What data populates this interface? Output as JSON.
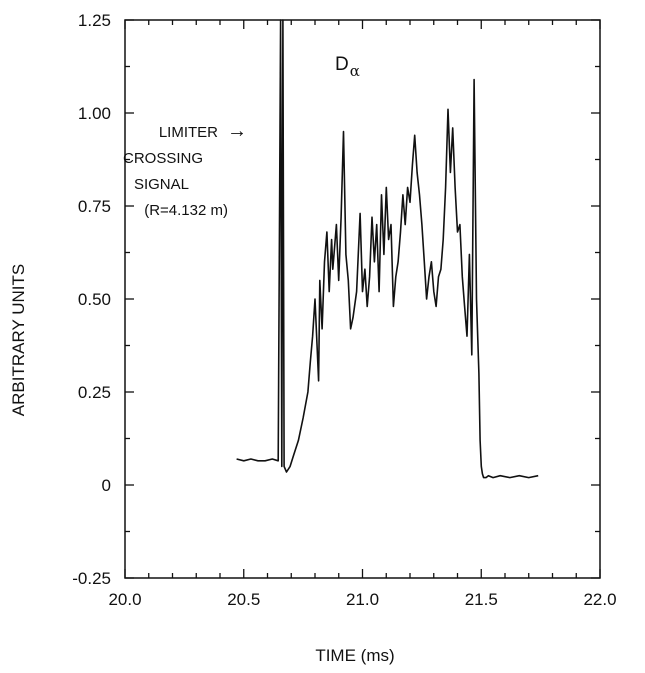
{
  "chart_data": {
    "type": "line",
    "title": "",
    "xlabel": "TIME (ms)",
    "ylabel": "ARBITRARY UNITS",
    "xlim": [
      20.0,
      22.0
    ],
    "ylim": [
      -0.25,
      1.25
    ],
    "xticks": [
      "20.0",
      "20.5",
      "21.0",
      "21.5",
      "22.0"
    ],
    "yticks": [
      "-0.25",
      "0",
      "0.25",
      "0.50",
      "0.75",
      "1.00",
      "1.25"
    ],
    "grid": false,
    "series": [
      {
        "name_main": "D",
        "name_sub": "α",
        "x": [
          20.47,
          20.5,
          20.53,
          20.56,
          20.59,
          20.62,
          20.645,
          20.655,
          20.66,
          20.665,
          20.67,
          20.68,
          20.695,
          20.71,
          20.73,
          20.75,
          20.77,
          20.78,
          20.79,
          20.8,
          20.815,
          20.82,
          20.83,
          20.84,
          20.85,
          20.86,
          20.87,
          20.875,
          20.88,
          20.89,
          20.9,
          20.91,
          20.92,
          20.93,
          20.94,
          20.95,
          20.96,
          20.975,
          20.99,
          21.0,
          21.01,
          21.02,
          21.03,
          21.04,
          21.05,
          21.06,
          21.07,
          21.08,
          21.09,
          21.1,
          21.11,
          21.12,
          21.13,
          21.14,
          21.15,
          21.16,
          21.17,
          21.18,
          21.19,
          21.2,
          21.21,
          21.22,
          21.23,
          21.24,
          21.25,
          21.26,
          21.27,
          21.28,
          21.29,
          21.3,
          21.31,
          21.32,
          21.33,
          21.34,
          21.35,
          21.36,
          21.37,
          21.38,
          21.39,
          21.4,
          21.41,
          21.42,
          21.43,
          21.44,
          21.45,
          21.46,
          21.47,
          21.48,
          21.49,
          21.495,
          21.5,
          21.505,
          21.51,
          21.52,
          21.53,
          21.55,
          21.58,
          21.62,
          21.66,
          21.7,
          21.74
        ],
        "y": [
          0.07,
          0.065,
          0.07,
          0.065,
          0.065,
          0.07,
          0.065,
          1.27,
          0.05,
          1.27,
          0.05,
          0.035,
          0.05,
          0.08,
          0.12,
          0.18,
          0.25,
          0.33,
          0.4,
          0.5,
          0.28,
          0.55,
          0.42,
          0.6,
          0.68,
          0.52,
          0.66,
          0.58,
          0.62,
          0.7,
          0.55,
          0.72,
          0.95,
          0.62,
          0.55,
          0.42,
          0.45,
          0.52,
          0.73,
          0.52,
          0.58,
          0.48,
          0.56,
          0.72,
          0.6,
          0.7,
          0.52,
          0.78,
          0.62,
          0.8,
          0.66,
          0.7,
          0.48,
          0.56,
          0.6,
          0.68,
          0.78,
          0.7,
          0.8,
          0.76,
          0.86,
          0.94,
          0.84,
          0.78,
          0.7,
          0.6,
          0.5,
          0.56,
          0.6,
          0.52,
          0.48,
          0.56,
          0.58,
          0.66,
          0.8,
          1.01,
          0.84,
          0.96,
          0.8,
          0.68,
          0.7,
          0.56,
          0.48,
          0.4,
          0.62,
          0.35,
          1.09,
          0.5,
          0.3,
          0.12,
          0.05,
          0.03,
          0.02,
          0.02,
          0.025,
          0.02,
          0.025,
          0.02,
          0.025,
          0.02,
          0.025
        ]
      }
    ],
    "annotation": {
      "lines": [
        "LIMITER",
        "CROSSING",
        "SIGNAL",
        "(R=4.132 m)"
      ],
      "arrow_glyph": "→"
    }
  }
}
